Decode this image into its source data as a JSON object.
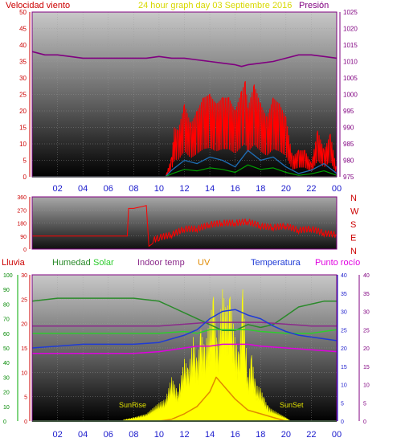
{
  "header": {
    "wind_label": "Velocidad viento",
    "title": "24 hour graph day   03 Septiembre 2016",
    "pressure_label": "Presión"
  },
  "legend": {
    "rain": "Lluvia",
    "humidity": "Humedad",
    "solar": "Solar",
    "indoor_temp": "Indoor temp",
    "uv": "UV",
    "temperature": "Temperatura",
    "dewpoint": "Punto rocío"
  },
  "annotations": {
    "sunrise": "SunRise",
    "sunset": "SunSet"
  },
  "compass": [
    "N",
    "W",
    "S",
    "E",
    "N"
  ],
  "colors": {
    "wind": "#ff0000",
    "gust": "#ff0000",
    "wind_avg": "#1e6eb4",
    "wind_green": "#00a000",
    "pressure": "#800080",
    "direction": "#ff0000",
    "humidity": "#2a8a2a",
    "solar": "#ffff00",
    "solar_line": "#2ecc2e",
    "indoor": "#8b2a8b",
    "uv": "#e08a00",
    "temperature": "#1f3bd6",
    "dewpoint": "#e000e0",
    "rain": "#00aa00",
    "frame": "#800080",
    "axis_red": "#cc0000",
    "axis_blue": "#1a1acc"
  },
  "chart_data": [
    {
      "type": "line",
      "name": "wind-pressure",
      "x_ticks": [
        "02",
        "04",
        "06",
        "08",
        "10",
        "12",
        "14",
        "16",
        "18",
        "20",
        "22",
        "00"
      ],
      "ylim_left": [
        0,
        50
      ],
      "yticks_left": [
        0,
        5,
        10,
        15,
        20,
        25,
        30,
        35,
        40,
        45,
        50
      ],
      "ylim_right": [
        975,
        1025
      ],
      "yticks_right": [
        975,
        980,
        985,
        990,
        995,
        1000,
        1005,
        1010,
        1015,
        1020,
        1025
      ],
      "series": [
        {
          "name": "Presión",
          "axis": "right",
          "x": [
            0,
            1,
            2,
            3,
            4,
            5,
            6,
            7,
            8,
            9,
            10,
            11,
            12,
            13,
            14,
            15,
            16,
            16.5,
            17,
            18,
            19,
            20,
            21,
            22,
            23,
            24
          ],
          "y": [
            1013,
            1012,
            1012,
            1011.5,
            1011,
            1011,
            1011,
            1011,
            1011,
            1011,
            1011.5,
            1011,
            1011,
            1010.5,
            1010,
            1009.5,
            1009,
            1008.5,
            1009,
            1009.5,
            1010,
            1011,
            1012,
            1012,
            1011.5,
            1011
          ]
        },
        {
          "name": "Gust",
          "axis": "left",
          "x": [
            0,
            10.5,
            11,
            11.2,
            11.5,
            12,
            12.5,
            13,
            13.5,
            14,
            14.5,
            15,
            15.5,
            16,
            16.5,
            16.8,
            17,
            17.5,
            18,
            18.5,
            19,
            19.5,
            20,
            20.5,
            21,
            21.5,
            22,
            22.5,
            23,
            23.5,
            24
          ],
          "y": [
            0,
            0,
            6,
            15,
            14,
            22,
            16,
            20,
            24,
            25,
            22,
            24,
            24,
            20,
            26,
            29,
            21,
            28,
            22,
            18,
            24,
            22,
            18,
            6,
            8,
            8,
            4,
            14,
            8,
            13,
            2
          ]
        },
        {
          "name": "Wind avg",
          "axis": "left",
          "x": [
            0,
            10.5,
            11,
            12,
            13,
            14,
            15,
            16,
            17,
            18,
            19,
            20,
            21,
            22,
            23,
            24
          ],
          "y": [
            0,
            0,
            2,
            5,
            4,
            6,
            5,
            3,
            8,
            5,
            6,
            3,
            1,
            2,
            4,
            1
          ]
        }
      ]
    },
    {
      "type": "line",
      "name": "wind-direction",
      "ylim": [
        0,
        360
      ],
      "yticks": [
        0,
        90,
        180,
        270,
        360
      ],
      "series": [
        {
          "name": "Direction",
          "x": [
            0,
            7.5,
            7.6,
            8,
            8.5,
            9,
            9.2,
            9.5,
            10,
            11,
            12,
            13,
            14,
            15,
            16,
            17,
            18,
            19,
            20,
            21,
            22,
            23,
            24
          ],
          "y": [
            90,
            90,
            280,
            280,
            290,
            300,
            20,
            60,
            80,
            100,
            140,
            140,
            170,
            180,
            180,
            190,
            160,
            150,
            160,
            130,
            140,
            110,
            100
          ]
        }
      ]
    },
    {
      "type": "line",
      "name": "weather",
      "ylim_rain": [
        0,
        100
      ],
      "yticks_rain": [
        0,
        10,
        20,
        30,
        40,
        50,
        60,
        70,
        80,
        90,
        100
      ],
      "ylim_humidity": [
        0,
        30
      ],
      "yticks_humidity": [
        0,
        5,
        10,
        15,
        20,
        25,
        30
      ],
      "ylim_right": [
        0,
        40
      ],
      "yticks_right": [
        0,
        5,
        10,
        15,
        20,
        25,
        30,
        35,
        40
      ],
      "series": [
        {
          "name": "Humedad",
          "axis": "left_humidity",
          "x": [
            0,
            2,
            4,
            6,
            8,
            10,
            11,
            12,
            13,
            14,
            15,
            16,
            17,
            18,
            19,
            20,
            21,
            22,
            23,
            24
          ],
          "y": [
            82,
            84,
            84,
            84,
            84,
            82,
            78,
            74,
            70,
            66,
            62,
            62,
            66,
            64,
            66,
            72,
            78,
            80,
            82,
            82
          ]
        },
        {
          "name": "Indoor temp",
          "axis": "right",
          "x": [
            0,
            4,
            8,
            10,
            12,
            14,
            16,
            18,
            20,
            22,
            24
          ],
          "y": [
            26,
            26,
            26,
            26,
            26.5,
            27,
            27,
            27,
            26.5,
            26,
            26
          ]
        },
        {
          "name": "Solar",
          "axis": "right",
          "x": [
            0,
            4,
            8,
            10,
            12,
            13,
            14,
            15,
            16,
            17,
            18,
            20,
            22,
            24
          ],
          "y": [
            24,
            24,
            24,
            24,
            24.5,
            24,
            25,
            25,
            25,
            25,
            24.5,
            24,
            24,
            25
          ]
        },
        {
          "name": "Temperatura",
          "axis": "right",
          "x": [
            0,
            2,
            4,
            6,
            8,
            10,
            11,
            12,
            13,
            14,
            15,
            16,
            17,
            18,
            19,
            20,
            21,
            22,
            23,
            24
          ],
          "y": [
            20,
            20.5,
            21,
            21,
            21,
            21.5,
            22.5,
            23.5,
            25,
            28,
            30,
            30.5,
            29,
            28,
            26,
            24.5,
            23.5,
            23,
            22.5,
            22
          ]
        },
        {
          "name": "Punto rocío",
          "axis": "right",
          "x": [
            0,
            2,
            4,
            6,
            8,
            10,
            12,
            13,
            14,
            15,
            16,
            17,
            18,
            20,
            22,
            24
          ],
          "y": [
            18.5,
            18.5,
            18.5,
            18.5,
            18.5,
            19,
            20,
            20.5,
            20.5,
            21,
            21,
            21,
            20.5,
            20,
            19.5,
            19
          ]
        },
        {
          "name": "UV",
          "axis": "right",
          "x": [
            0,
            10,
            11,
            12,
            13,
            14,
            14.5,
            15,
            16,
            17,
            18,
            19,
            20,
            24
          ],
          "y": [
            0,
            0,
            0.5,
            2,
            4,
            8,
            12,
            10,
            6,
            3,
            2,
            1,
            0,
            0
          ]
        },
        {
          "name": "Lluvia",
          "axis": "left_rain",
          "x": [
            0,
            24
          ],
          "y": [
            0,
            0
          ]
        }
      ],
      "solar_radiation": {
        "x": [
          7.2,
          8,
          9,
          10,
          10.5,
          11,
          11.5,
          12,
          12.3,
          12.7,
          13,
          13.3,
          13.6,
          14,
          14.3,
          14.6,
          15,
          15.3,
          15.6,
          16,
          16.3,
          16.6,
          17,
          17.3,
          17.6,
          18,
          18.3,
          18.6,
          19,
          19.5,
          20,
          20.3
        ],
        "y": [
          0.4,
          1,
          2,
          5,
          6,
          12,
          8,
          17,
          14,
          23,
          16,
          25,
          20,
          28,
          34,
          20,
          36,
          30,
          34,
          23,
          18,
          36,
          12,
          18,
          10,
          9,
          6,
          4,
          3,
          2,
          1,
          0.2
        ]
      }
    }
  ]
}
